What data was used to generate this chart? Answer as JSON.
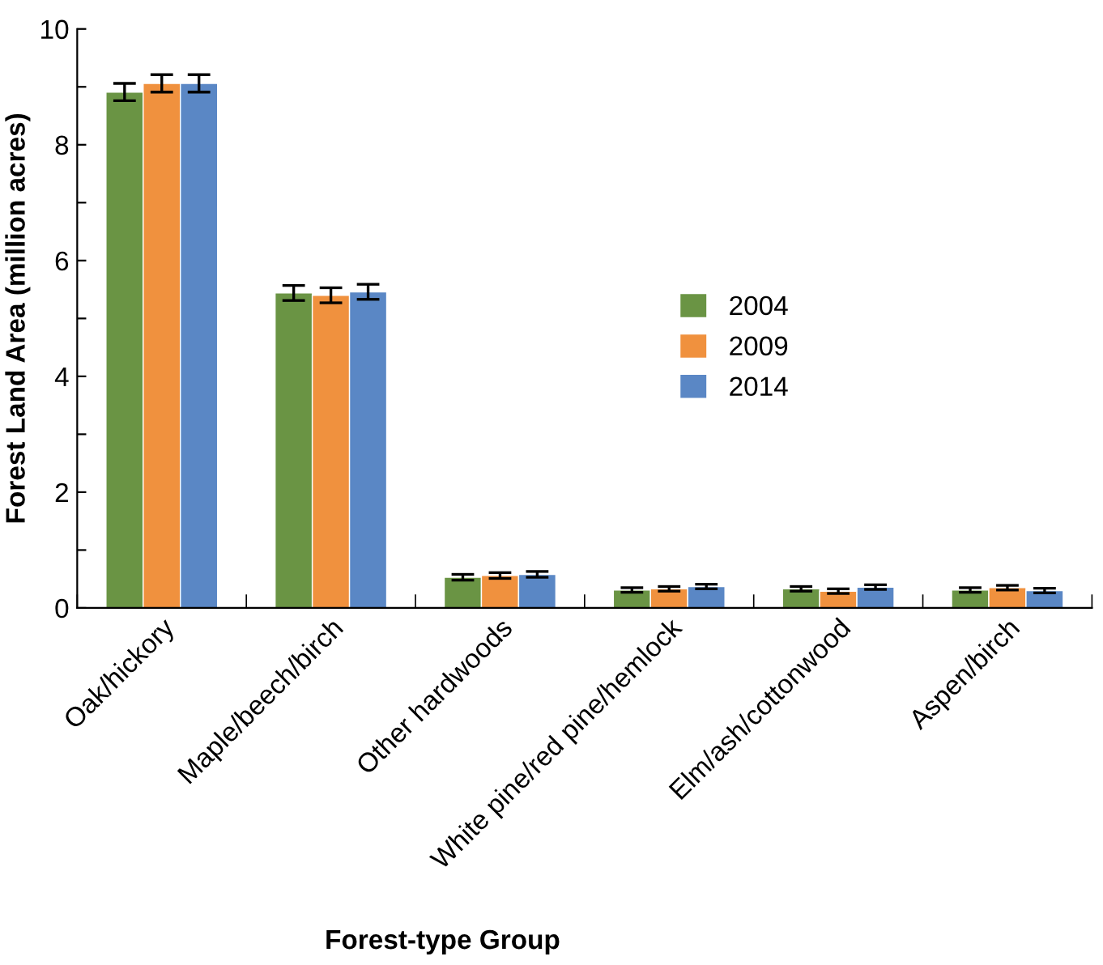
{
  "chart_data": {
    "type": "bar",
    "xlabel": "Forest-type Group",
    "ylabel": "Forest Land Area (million acres)",
    "categories": [
      "Oak/hickory",
      "Maple/beech/birch",
      "Other hardwoods",
      "White pine/red pine/hemlock",
      "Elm/ash/cottonwood",
      "Aspen/birch"
    ],
    "series": [
      {
        "name": "2004",
        "color": "#6a9444",
        "values": [
          8.91,
          5.44,
          0.53,
          0.31,
          0.33,
          0.31
        ],
        "errors": [
          0.15,
          0.13,
          0.05,
          0.04,
          0.04,
          0.04
        ]
      },
      {
        "name": "2009",
        "color": "#f0913e",
        "values": [
          9.06,
          5.4,
          0.56,
          0.33,
          0.29,
          0.35
        ],
        "errors": [
          0.15,
          0.13,
          0.05,
          0.04,
          0.04,
          0.04
        ]
      },
      {
        "name": "2014",
        "color": "#5a87c5",
        "values": [
          9.06,
          5.46,
          0.58,
          0.37,
          0.36,
          0.3
        ],
        "errors": [
          0.15,
          0.13,
          0.05,
          0.04,
          0.04,
          0.04
        ]
      }
    ],
    "ylim": [
      0,
      10
    ],
    "yticks": [
      0,
      {
        "value": 1,
        "label": null
      },
      2,
      {
        "value": 3,
        "label": null
      },
      4,
      {
        "value": 5,
        "label": null
      },
      6,
      {
        "value": 7,
        "label": null
      },
      8,
      {
        "value": 9,
        "label": null
      },
      10
    ],
    "grid": false,
    "legend": "right"
  }
}
